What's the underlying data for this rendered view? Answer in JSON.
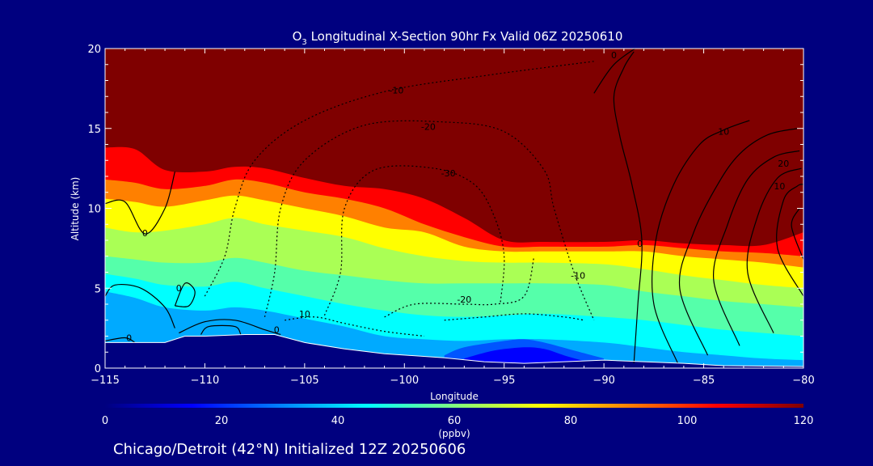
{
  "chart_data": {
    "type": "heatmap",
    "title": "O3 Longitudinal X-Section 90hr  Fx Valid 06Z 20250610",
    "title_parts": {
      "pre": "O",
      "sub": "3",
      "post": " Longitudinal X-Section 90hr  Fx Valid 06Z 20250610"
    },
    "xlabel": "Longitude",
    "ylabel": "Altitude (km)",
    "xlim": [
      -115,
      -80
    ],
    "ylim": [
      0,
      20
    ],
    "x_ticks": [
      -115,
      -110,
      -105,
      -100,
      -95,
      -90,
      -85,
      -80
    ],
    "x_tick_labels": [
      "−115",
      "−110",
      "−105",
      "−100",
      "−95",
      "−90",
      "−85",
      "−80"
    ],
    "y_ticks": [
      0,
      5,
      10,
      15,
      20
    ],
    "y_tick_labels": [
      "0",
      "5",
      "10",
      "15",
      "20"
    ],
    "colorbar": {
      "label": "(ppbv)",
      "range": [
        0,
        120
      ],
      "ticks": [
        0,
        20,
        40,
        60,
        80,
        100,
        120
      ],
      "tick_labels": [
        "0",
        "20",
        "40",
        "60",
        "80",
        "100",
        "120"
      ],
      "colormap": [
        "#00007f",
        "#0000ff",
        "#0080ff",
        "#00ffff",
        "#80ff80",
        "#ffff00",
        "#ff8000",
        "#ff0000",
        "#7f0000"
      ]
    },
    "terrain_top_km": [
      [
        -115,
        1.6
      ],
      [
        -113,
        1.6
      ],
      [
        -112,
        1.6
      ],
      [
        -111,
        2.0
      ],
      [
        -110,
        2.0
      ],
      [
        -108,
        2.1
      ],
      [
        -106.5,
        2.1
      ],
      [
        -105,
        1.6
      ],
      [
        -103,
        1.2
      ],
      [
        -101,
        0.9
      ],
      [
        -98,
        0.65
      ],
      [
        -96,
        0.4
      ],
      [
        -94,
        0.3
      ],
      [
        -92,
        0.4
      ],
      [
        -90,
        0.5
      ],
      [
        -88,
        0.4
      ],
      [
        -86,
        0.3
      ],
      [
        -84,
        0.15
      ],
      [
        -80,
        0.1
      ]
    ],
    "layers_ppbv": [
      {
        "value": 120,
        "top_km": [
          [
            -115,
            20
          ],
          [
            -80,
            20
          ]
        ]
      },
      {
        "value": 105,
        "top_km": [
          [
            -115,
            13.8
          ],
          [
            -113.5,
            13.7
          ],
          [
            -112,
            12.4
          ],
          [
            -110,
            12.3
          ],
          [
            -108.5,
            12.6
          ],
          [
            -107,
            12.5
          ],
          [
            -105,
            11.9
          ],
          [
            -103,
            11.4
          ],
          [
            -101,
            11.2
          ],
          [
            -99,
            10.6
          ],
          [
            -97,
            9.4
          ],
          [
            -95,
            8.0
          ],
          [
            -93,
            7.9
          ],
          [
            -90,
            7.9
          ],
          [
            -88,
            8.0
          ],
          [
            -86,
            7.8
          ],
          [
            -84,
            7.7
          ],
          [
            -82,
            7.7
          ],
          [
            -80,
            8.5
          ]
        ]
      },
      {
        "value": 90,
        "top_km": [
          [
            -115,
            11.8
          ],
          [
            -113.5,
            11.6
          ],
          [
            -112,
            11.2
          ],
          [
            -110,
            11.4
          ],
          [
            -108.5,
            11.8
          ],
          [
            -107,
            11.6
          ],
          [
            -105,
            11.0
          ],
          [
            -103,
            10.6
          ],
          [
            -101,
            10.0
          ],
          [
            -99,
            9.0
          ],
          [
            -97,
            8.2
          ],
          [
            -95,
            7.6
          ],
          [
            -93,
            7.6
          ],
          [
            -90,
            7.6
          ],
          [
            -88,
            7.7
          ],
          [
            -86,
            7.5
          ],
          [
            -84,
            7.3
          ],
          [
            -82,
            7.2
          ],
          [
            -80,
            7.0
          ]
        ]
      },
      {
        "value": 75,
        "top_km": [
          [
            -115,
            10.6
          ],
          [
            -113.5,
            10.4
          ],
          [
            -112,
            10.1
          ],
          [
            -110,
            10.5
          ],
          [
            -108.5,
            10.8
          ],
          [
            -107,
            10.5
          ],
          [
            -105,
            10.0
          ],
          [
            -103,
            9.5
          ],
          [
            -101,
            8.8
          ],
          [
            -99,
            8.5
          ],
          [
            -97,
            7.6
          ],
          [
            -95,
            7.3
          ],
          [
            -93,
            7.3
          ],
          [
            -90,
            7.3
          ],
          [
            -88,
            7.3
          ],
          [
            -86,
            7.0
          ],
          [
            -84,
            6.8
          ],
          [
            -82,
            6.6
          ],
          [
            -80,
            6.3
          ]
        ]
      },
      {
        "value": 65,
        "top_km": [
          [
            -115,
            8.8
          ],
          [
            -113.5,
            8.5
          ],
          [
            -112,
            8.6
          ],
          [
            -110,
            9.0
          ],
          [
            -108.5,
            9.4
          ],
          [
            -107,
            9.0
          ],
          [
            -105,
            8.6
          ],
          [
            -103,
            8.2
          ],
          [
            -101,
            7.5
          ],
          [
            -99,
            7.0
          ],
          [
            -97,
            6.7
          ],
          [
            -95,
            6.6
          ],
          [
            -93,
            6.6
          ],
          [
            -90,
            6.5
          ],
          [
            -88,
            6.2
          ],
          [
            -86,
            5.8
          ],
          [
            -84,
            5.5
          ],
          [
            -82,
            5.2
          ],
          [
            -80,
            5.0
          ]
        ]
      },
      {
        "value": 55,
        "top_km": [
          [
            -115,
            7.0
          ],
          [
            -113.5,
            6.8
          ],
          [
            -112,
            6.6
          ],
          [
            -110,
            6.6
          ],
          [
            -108.5,
            6.9
          ],
          [
            -107,
            6.6
          ],
          [
            -105,
            6.1
          ],
          [
            -103,
            5.8
          ],
          [
            -101,
            5.5
          ],
          [
            -99,
            5.3
          ],
          [
            -97,
            5.3
          ],
          [
            -95,
            5.3
          ],
          [
            -93,
            5.3
          ],
          [
            -90,
            5.2
          ],
          [
            -88,
            4.8
          ],
          [
            -86,
            4.5
          ],
          [
            -84,
            4.2
          ],
          [
            -82,
            4.0
          ],
          [
            -80,
            3.8
          ]
        ]
      },
      {
        "value": 45,
        "top_km": [
          [
            -115,
            5.9
          ],
          [
            -113.5,
            5.6
          ],
          [
            -112,
            5.2
          ],
          [
            -110,
            5.1
          ],
          [
            -108.5,
            5.4
          ],
          [
            -107,
            5.0
          ],
          [
            -105,
            4.5
          ],
          [
            -103,
            4.0
          ],
          [
            -101,
            3.6
          ],
          [
            -99,
            3.3
          ],
          [
            -97,
            3.2
          ],
          [
            -95,
            3.3
          ],
          [
            -93,
            3.4
          ],
          [
            -90,
            3.2
          ],
          [
            -88,
            3.0
          ],
          [
            -86,
            2.7
          ],
          [
            -84,
            2.4
          ],
          [
            -82,
            2.2
          ],
          [
            -80,
            2.0
          ]
        ]
      },
      {
        "value": 35,
        "top_km": [
          [
            -115,
            4.8
          ],
          [
            -113.5,
            4.4
          ],
          [
            -112,
            3.8
          ],
          [
            -110,
            3.6
          ],
          [
            -108.5,
            3.8
          ],
          [
            -107,
            3.6
          ],
          [
            -105,
            3.1
          ],
          [
            -103,
            2.6
          ],
          [
            -101,
            2.0
          ],
          [
            -99,
            1.8
          ],
          [
            -97,
            1.7
          ],
          [
            -95,
            1.8
          ],
          [
            -93,
            1.8
          ],
          [
            -90,
            1.6
          ],
          [
            -88,
            1.3
          ],
          [
            -86,
            1.0
          ],
          [
            -84,
            0.8
          ],
          [
            -82,
            0.6
          ],
          [
            -80,
            0.5
          ]
        ]
      },
      {
        "value": 25,
        "top_km": [
          [
            -98,
            0.8
          ],
          [
            -97,
            1.3
          ],
          [
            -95,
            1.7
          ],
          [
            -94,
            1.8
          ],
          [
            -93,
            1.6
          ],
          [
            -91.5,
            1.1
          ],
          [
            -90,
            0.6
          ]
        ]
      },
      {
        "value": 15,
        "top_km": [
          [
            -97,
            0.6
          ],
          [
            -95.5,
            1.1
          ],
          [
            -94,
            1.3
          ],
          [
            -93,
            1.2
          ],
          [
            -92,
            0.8
          ],
          [
            -91,
            0.45
          ]
        ]
      }
    ],
    "contour_labels": [
      {
        "text": "0",
        "x": -113.0,
        "y": 8.25
      },
      {
        "text": "0",
        "x": -111.3,
        "y": 4.8
      },
      {
        "text": "0",
        "x": -113.8,
        "y": 1.7
      },
      {
        "text": "0",
        "x": -106.4,
        "y": 2.2
      },
      {
        "text": "10",
        "x": -105.0,
        "y": 3.2
      },
      {
        "text": "-10",
        "x": -100.4,
        "y": 17.2
      },
      {
        "text": "-20",
        "x": -98.8,
        "y": 14.9
      },
      {
        "text": "-30",
        "x": -97.8,
        "y": 12.0
      },
      {
        "text": "-20",
        "x": -97.0,
        "y": 4.1
      },
      {
        "text": "-10",
        "x": -91.3,
        "y": 5.6
      },
      {
        "text": "0",
        "x": -88.2,
        "y": 7.6
      },
      {
        "text": "0",
        "x": -89.5,
        "y": 19.4
      },
      {
        "text": "10",
        "x": -84.0,
        "y": 14.6
      },
      {
        "text": "20",
        "x": -81.0,
        "y": 12.6
      },
      {
        "text": "10",
        "x": -81.2,
        "y": 11.2
      }
    ]
  },
  "footer": {
    "initialized_label": "Chicago/Detroit (42°N) Initialized 12Z 20250606"
  }
}
